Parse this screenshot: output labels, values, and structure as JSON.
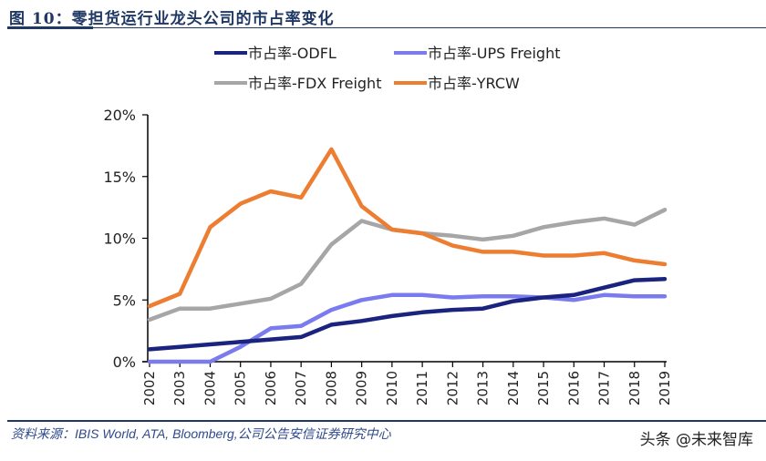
{
  "figure": {
    "title": "图 10：零担货运行业龙头公司的市占率变化",
    "source": "资料来源：IBIS World, ATA, Bloomberg,公司公告安信证券研究中心",
    "watermark": "头条 @未来智库"
  },
  "chart_data": {
    "type": "line",
    "title": "图 10：零担货运行业龙头公司的市占率变化",
    "xlabel": "",
    "ylabel": "",
    "x": [
      "2002",
      "2003",
      "2004",
      "2005",
      "2006",
      "2007",
      "2008",
      "2009",
      "2010",
      "2011",
      "2012",
      "2013",
      "2014",
      "2015",
      "2016",
      "2017",
      "2018",
      "2019"
    ],
    "ylim": [
      0,
      20
    ],
    "yticks": [
      0,
      5,
      10,
      15,
      20
    ],
    "ytick_labels": [
      "0%",
      "5%",
      "10%",
      "15%",
      "20%"
    ],
    "grid": false,
    "legend_position": "top",
    "series": [
      {
        "name": "市占率-ODFL",
        "color": "#1a237e",
        "values": [
          1.0,
          1.2,
          1.4,
          1.6,
          1.8,
          2.0,
          3.0,
          3.3,
          3.7,
          4.0,
          4.2,
          4.3,
          4.9,
          5.2,
          5.4,
          6.0,
          6.6,
          6.7
        ]
      },
      {
        "name": "市占率-UPS Freight",
        "color": "#7b7bf0",
        "values": [
          0.0,
          0.0,
          0.0,
          1.2,
          2.7,
          2.9,
          4.2,
          5.0,
          5.4,
          5.4,
          5.2,
          5.3,
          5.3,
          5.2,
          5.0,
          5.4,
          5.3,
          5.3
        ]
      },
      {
        "name": "市占率-FDX Freight",
        "color": "#a6a6a6",
        "values": [
          3.4,
          4.3,
          4.3,
          4.7,
          5.1,
          6.3,
          9.5,
          11.4,
          10.7,
          10.4,
          10.2,
          9.9,
          10.2,
          10.9,
          11.3,
          11.6,
          11.1,
          12.3
        ]
      },
      {
        "name": "市占率-YRCW",
        "color": "#ed7d31",
        "values": [
          4.5,
          5.5,
          10.9,
          12.8,
          13.8,
          13.3,
          17.2,
          12.6,
          10.7,
          10.4,
          9.4,
          8.9,
          8.9,
          8.6,
          8.6,
          8.8,
          8.2,
          7.9
        ]
      }
    ]
  }
}
